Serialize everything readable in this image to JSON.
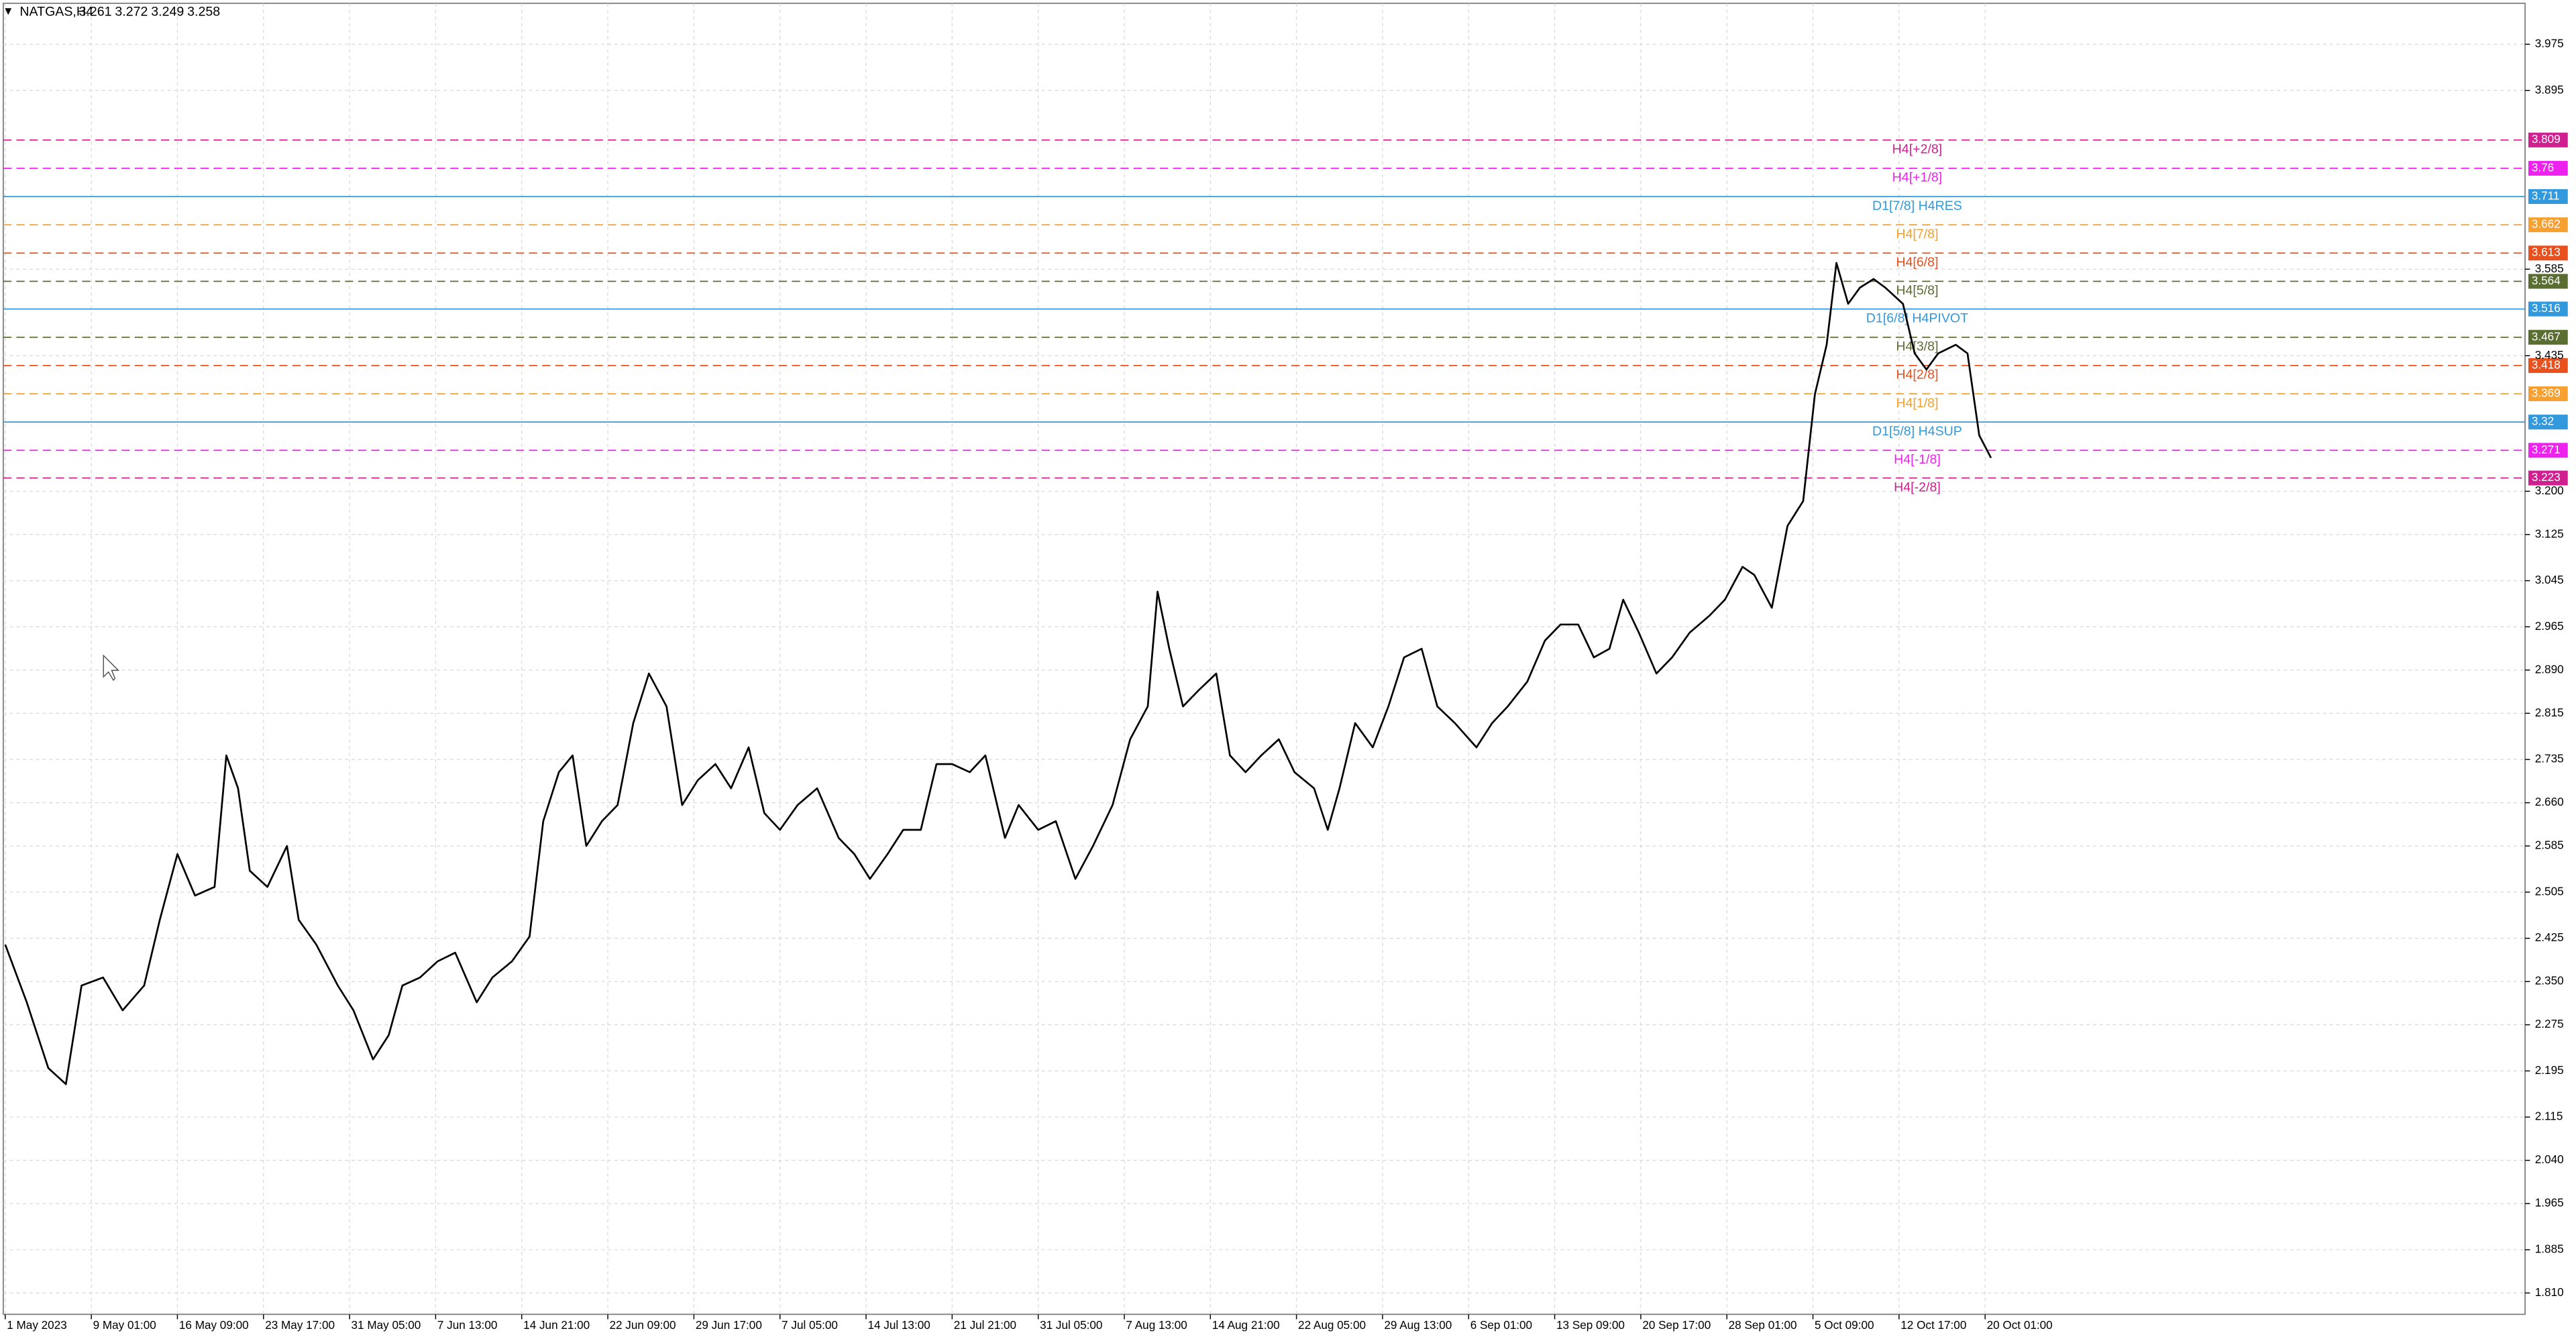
{
  "chart_data": {
    "type": "line",
    "title": "NATGAS,H4",
    "ohlc": [
      3.261,
      3.272,
      3.249,
      3.258
    ],
    "x": [
      0,
      11,
      22,
      31,
      39,
      50,
      60,
      71,
      79,
      88,
      97,
      107,
      113,
      119,
      125,
      134,
      144,
      150,
      159,
      170,
      178,
      188,
      196,
      203,
      212,
      221,
      230,
      241,
      249,
      259,
      268,
      275,
      283,
      290,
      297,
      305,
      313,
      321,
      329,
      338,
      346,
      354,
      363,
      371,
      380,
      388,
      396,
      405,
      415,
      426,
      434,
      442,
      451,
      459,
      468,
      476,
      484,
      493,
      501,
      511,
      518,
      528,
      537,
      547,
      556,
      566,
      575,
      584,
      589,
      595,
      602,
      610,
      619,
      626,
      634,
      642,
      651,
      659,
      669,
      676,
      682,
      690,
      699,
      707,
      715,
      724,
      732,
      741,
      752,
      760,
      768,
      778,
      787,
      795,
      804,
      812,
      820,
      827,
      835,
      844,
      852,
      861,
      871,
      879,
      888,
      894,
      903,
      911,
      919,
      925,
      931,
      936,
      942,
      948,
      955,
      961,
      970,
      976,
      982,
      988,
      997,
      1003,
      1009,
      1015
    ],
    "series": [
      {
        "color": "#000000",
        "values": [
          2.414,
          2.314,
          2.2,
          2.172,
          2.343,
          2.357,
          2.3,
          2.343,
          2.457,
          2.571,
          2.499,
          2.514,
          2.742,
          2.685,
          2.542,
          2.514,
          2.585,
          2.457,
          2.414,
          2.343,
          2.3,
          2.215,
          2.257,
          2.343,
          2.357,
          2.385,
          2.4,
          2.314,
          2.357,
          2.385,
          2.428,
          2.628,
          2.713,
          2.742,
          2.585,
          2.628,
          2.656,
          2.798,
          2.884,
          2.827,
          2.656,
          2.699,
          2.727,
          2.685,
          2.756,
          2.642,
          2.613,
          2.656,
          2.685,
          2.599,
          2.571,
          2.528,
          2.571,
          2.613,
          2.613,
          2.727,
          2.727,
          2.713,
          2.742,
          2.599,
          2.656,
          2.613,
          2.628,
          2.528,
          2.585,
          2.656,
          2.77,
          2.827,
          3.026,
          2.927,
          2.827,
          2.855,
          2.884,
          2.742,
          2.713,
          2.742,
          2.77,
          2.713,
          2.685,
          2.613,
          2.685,
          2.798,
          2.756,
          2.827,
          2.912,
          2.927,
          2.827,
          2.798,
          2.756,
          2.798,
          2.827,
          2.87,
          2.941,
          2.969,
          2.969,
          2.912,
          2.927,
          3.012,
          2.955,
          2.884,
          2.912,
          2.955,
          2.984,
          3.012,
          3.069,
          3.055,
          2.998,
          3.14,
          3.183,
          3.368,
          3.454,
          3.596,
          3.525,
          3.553,
          3.568,
          3.553,
          3.525,
          3.439,
          3.411,
          3.439,
          3.454,
          3.439,
          3.297,
          3.258
        ]
      }
    ],
    "xlim": [
      -1,
      1288
    ],
    "ylim": [
      4.046,
      1.773
    ],
    "xticks": [
      {
        "value": 0,
        "label": "1 May 2023"
      },
      {
        "value": 44,
        "label": "9 May 01:00"
      },
      {
        "value": 88,
        "label": "16 May 09:00"
      },
      {
        "value": 132,
        "label": "23 May 17:00"
      },
      {
        "value": 176,
        "label": "31 May 05:00"
      },
      {
        "value": 220,
        "label": "7 Jun 13:00"
      },
      {
        "value": 264,
        "label": "14 Jun 21:00"
      },
      {
        "value": 308,
        "label": "22 Jun 09:00"
      },
      {
        "value": 352,
        "label": "29 Jun 17:00"
      },
      {
        "value": 396,
        "label": "7 Jul 05:00"
      },
      {
        "value": 440,
        "label": "14 Jul 13:00"
      },
      {
        "value": 484,
        "label": "21 Jul 21:00"
      },
      {
        "value": 528,
        "label": "31 Jul 05:00"
      },
      {
        "value": 572,
        "label": "7 Aug 13:00"
      },
      {
        "value": 616,
        "label": "14 Aug 21:00"
      },
      {
        "value": 660,
        "label": "22 Aug 05:00"
      },
      {
        "value": 704,
        "label": "29 Aug 13:00"
      },
      {
        "value": 748,
        "label": "6 Sep 01:00"
      },
      {
        "value": 792,
        "label": "13 Sep 09:00"
      },
      {
        "value": 836,
        "label": "20 Sep 17:00"
      },
      {
        "value": 880,
        "label": "28 Sep 01:00"
      },
      {
        "value": 924,
        "label": "5 Oct 09:00"
      },
      {
        "value": 968,
        "label": "12 Oct 17:00"
      },
      {
        "value": 1012,
        "label": "20 Oct 01:00"
      }
    ],
    "yticks": [
      3.975,
      3.895,
      3.585,
      3.435,
      {
        "value": 3.2,
        "label": "3.200"
      },
      3.125,
      3.045,
      2.965,
      {
        "value": 2.89,
        "label": "2.890"
      },
      2.815,
      2.735,
      {
        "value": 2.66,
        "label": "2.660"
      },
      2.585,
      2.505,
      2.425,
      {
        "value": 2.35,
        "label": "2.350"
      },
      2.275,
      2.195,
      2.115,
      {
        "value": 2.04,
        "label": "2.040"
      },
      1.965,
      1.885,
      {
        "value": 1.81,
        "label": "1.810"
      }
    ],
    "grid": true,
    "levels": [
      {
        "label": "H4[+2/8]",
        "value": 3.809,
        "color": "#d02090",
        "style": "dashed"
      },
      {
        "label": "H4[+1/8]",
        "value": 3.76,
        "color": "#ee22ee",
        "style": "dashed"
      },
      {
        "label": "D1[7/8] H4RES",
        "value": 3.711,
        "color": "#3399dd",
        "style": "solid"
      },
      {
        "label": "H4[7/8]",
        "value": 3.662,
        "color": "#f5a030",
        "style": "dashed"
      },
      {
        "label": "H4[6/8]",
        "value": 3.613,
        "color": "#e8501e",
        "style": "dashed"
      },
      {
        "label": "H4[5/8]",
        "value": 3.564,
        "color": "#5a6e32",
        "style": "dashed"
      },
      {
        "label": "D1[6/8] H4PIVOT",
        "value": 3.516,
        "color": "#3399dd",
        "style": "solid"
      },
      {
        "label": "H4[3/8]",
        "value": 3.467,
        "color": "#5a6e32",
        "style": "dashed"
      },
      {
        "label": "H4[2/8]",
        "value": 3.418,
        "color": "#e8501e",
        "style": "dashed"
      },
      {
        "label": "H4[1/8]",
        "value": 3.369,
        "color": "#f5a030",
        "style": "dashed"
      },
      {
        "label": "D1[5/8] H4SUP",
        "value": 3.32,
        "color": "#3399dd",
        "style": "solid"
      },
      {
        "label": "H4[-1/8]",
        "value": 3.271,
        "color": "#ee22ee",
        "style": "dashed"
      },
      {
        "label": "H4[-2/8]",
        "value": 3.223,
        "color": "#d02090",
        "style": "dashed"
      }
    ]
  }
}
